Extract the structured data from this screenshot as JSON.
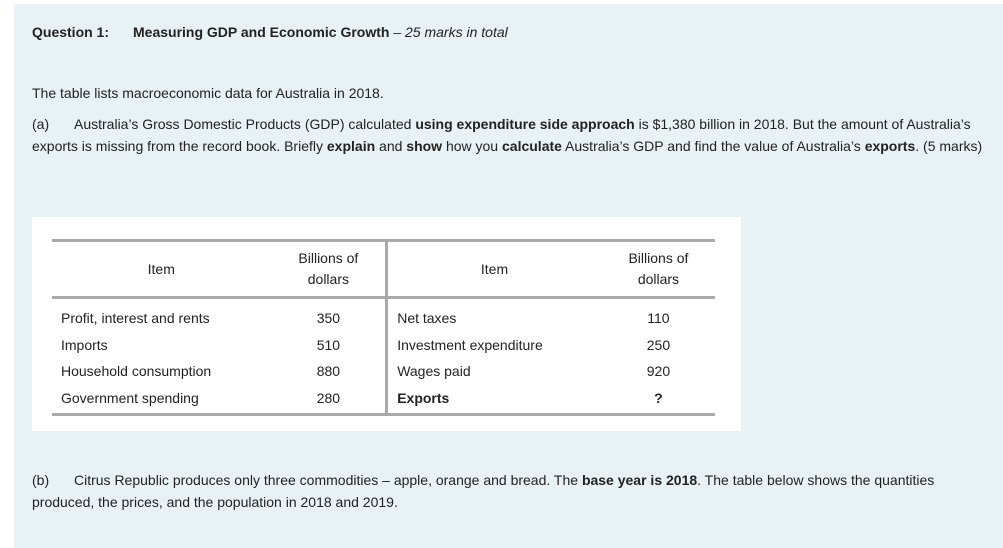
{
  "question": {
    "label": "Question 1:",
    "title": "Measuring GDP and Economic Growth",
    "marks": "– 25 marks in total"
  },
  "intro": "The table lists macroeconomic data for Australia in 2018.",
  "part_a": {
    "label": "(a)",
    "runs": [
      {
        "text": "Australia’s Gross Domestic Products (GDP) calculated "
      },
      {
        "text": "using expenditure side approach",
        "bold": true
      },
      {
        "text": " is $1,380 billion in 2018.  But the amount of Australia’s exports is missing from the record book.  Briefly "
      },
      {
        "text": "explain",
        "bold": true
      },
      {
        "text": " and "
      },
      {
        "text": "show",
        "bold": true
      },
      {
        "text": " how you "
      },
      {
        "text": "calculate",
        "bold": true
      },
      {
        "text": " Australia’s GDP and find the value of Australia’s "
      },
      {
        "text": "exports",
        "bold": true
      },
      {
        "text": ".  (5 marks)"
      }
    ]
  },
  "table": {
    "headers": [
      "Item",
      "Billions of dollars",
      "Item",
      "Billions of dollars"
    ],
    "rows": [
      [
        "Profit, interest and rents",
        350,
        "Net taxes",
        110
      ],
      [
        "Imports",
        510,
        "Investment expenditure",
        250
      ],
      [
        "Household consumption",
        880,
        "Wages paid",
        920
      ],
      [
        "Government spending",
        280,
        "Exports",
        "?"
      ]
    ],
    "bold_cells": [
      [
        3,
        2
      ],
      [
        3,
        3
      ]
    ]
  },
  "part_b": {
    "label": "(b)",
    "runs": [
      {
        "text": "Citrus Republic produces only three commodities – apple, orange and bread. The "
      },
      {
        "text": "base year is 2018",
        "bold": true
      },
      {
        "text": ". The table below shows the quantities produced, the prices, and the population in 2018 and 2019."
      }
    ]
  }
}
